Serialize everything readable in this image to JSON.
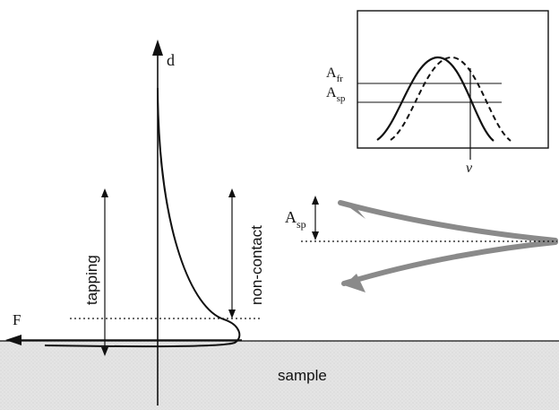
{
  "labels": {
    "axis_d": "d",
    "axis_F": "F",
    "sample": "sample",
    "tapping": "tapping",
    "non_contact": "non-contact",
    "A_sp_main": "A",
    "A_sp_main_sub": "sp",
    "inset_A_fr": "A",
    "inset_A_fr_sub": "fr",
    "inset_A_sp": "A",
    "inset_A_sp_sub": "sp",
    "inset_nu": "ν"
  },
  "colors": {
    "sample_fill": "#e6e6e6",
    "line": "#111111",
    "cantilever": "#8a8a8a"
  }
}
